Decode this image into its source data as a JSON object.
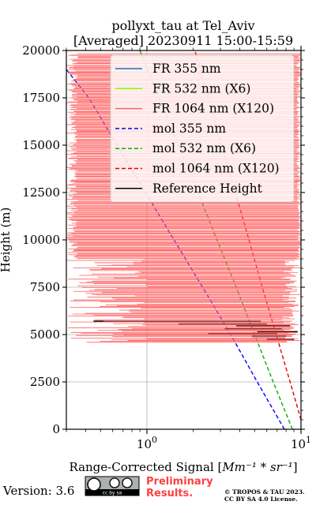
{
  "chart_data": {
    "type": "line",
    "title": "pollyxt_tau at Tel_Aviv",
    "subtitle": "[Averaged] 20230911 15:00-15:59",
    "ylabel": "Height (m)",
    "xlabel_prefix": "Range-Corrected Signal [",
    "xlabel_math": "Mm⁻¹ * sr⁻¹",
    "xlabel_suffix": "]",
    "xscale": "log",
    "xlim": [
      0.3,
      10
    ],
    "ylim": [
      0,
      20000
    ],
    "xticks": [
      {
        "value": 1,
        "base": "10",
        "exp": "0"
      },
      {
        "value": 10,
        "base": "10",
        "exp": "1"
      }
    ],
    "yticks": [
      0,
      2500,
      5000,
      7500,
      10000,
      12500,
      15000,
      17500,
      20000
    ],
    "grid": true,
    "legend_position": "top-right",
    "legend": [
      {
        "label": "FR 355 nm",
        "color": "#1f77b4",
        "style": "solid"
      },
      {
        "label": "FR 532 nm (X6)",
        "color": "#80ff00",
        "style": "solid"
      },
      {
        "label": "FR 1064 nm (X120)",
        "color": "#ff6464",
        "style": "solid"
      },
      {
        "label": "mol 355 nm",
        "color": "#0000ff",
        "style": "dashed"
      },
      {
        "label": "mol 532 nm (X6)",
        "color": "#00b400",
        "style": "dashed"
      },
      {
        "label": "mol 1064 nm (X120)",
        "color": "#e60000",
        "style": "dashed"
      },
      {
        "label": "Reference Height",
        "color": "#000000",
        "style": "solid"
      }
    ],
    "series": [
      {
        "name": "mol 355 nm",
        "color": "#0000ff",
        "style": "dashed",
        "points": [
          [
            7.8,
            0
          ],
          [
            5.2,
            2500
          ],
          [
            3.5,
            5000
          ],
          [
            2.3,
            7500
          ],
          [
            1.5,
            10000
          ],
          [
            0.98,
            12500
          ],
          [
            0.64,
            15000
          ],
          [
            0.42,
            17500
          ],
          [
            0.3,
            19000
          ]
        ]
      },
      {
        "name": "mol 532 nm (X6)",
        "color": "#00b400",
        "style": "dashed",
        "points": [
          [
            8.8,
            0
          ],
          [
            6.6,
            2500
          ],
          [
            5.0,
            5000
          ],
          [
            3.8,
            7500
          ],
          [
            2.85,
            10000
          ],
          [
            2.15,
            12500
          ],
          [
            1.6,
            15000
          ],
          [
            1.2,
            17500
          ],
          [
            0.9,
            20000
          ]
        ]
      },
      {
        "name": "mol 1064 nm (X120)",
        "color": "#e60000",
        "style": "dashed",
        "points": [
          [
            10,
            500
          ],
          [
            8.5,
            2500
          ],
          [
            6.9,
            5000
          ],
          [
            5.6,
            7500
          ],
          [
            4.6,
            10000
          ],
          [
            3.75,
            12500
          ],
          [
            3.05,
            15000
          ],
          [
            2.5,
            17500
          ],
          [
            2.05,
            20000
          ]
        ]
      },
      {
        "name": "Reference Height",
        "color": "#000000",
        "style": "solid",
        "segments": [
          [
            0.45,
            5700,
            5.5
          ],
          [
            1.6,
            5550,
            6.0
          ],
          [
            3.2,
            5300,
            7.5
          ],
          [
            2.5,
            5050,
            7.0
          ],
          [
            4.8,
            4900,
            8.0
          ],
          [
            6.0,
            4750,
            9.0
          ],
          [
            3.8,
            5450,
            8.5
          ],
          [
            5.2,
            5150,
            9.5
          ]
        ]
      },
      {
        "name": "FR 1064 nm (X120)",
        "color": "#ff6464",
        "style": "solid",
        "heights": [
          19700,
          19400,
          19100,
          18800,
          18500,
          18200,
          17900,
          17600,
          17300,
          17000,
          16700,
          16400,
          16100,
          15800,
          15500,
          15200,
          14900,
          14600,
          14300,
          14000,
          13700,
          13400,
          13100,
          12800,
          12500,
          12200,
          11900,
          11600,
          11300,
          11000,
          10700,
          10400,
          10100,
          9800,
          9500,
          9200,
          8900,
          8600,
          8300,
          8000,
          7700,
          7400,
          7100,
          6800,
          6500,
          6200,
          5900,
          5600,
          5300,
          5000,
          4700
        ]
      }
    ]
  },
  "footer": {
    "version": "Version: 3.6",
    "license_badge": "cc by sa",
    "preliminary_line1": "Preliminary",
    "preliminary_line2": "Results.",
    "copyright_line1": "© TROPOS & TAU 2023.",
    "copyright_line2": "CC BY SA 4.0 License."
  }
}
